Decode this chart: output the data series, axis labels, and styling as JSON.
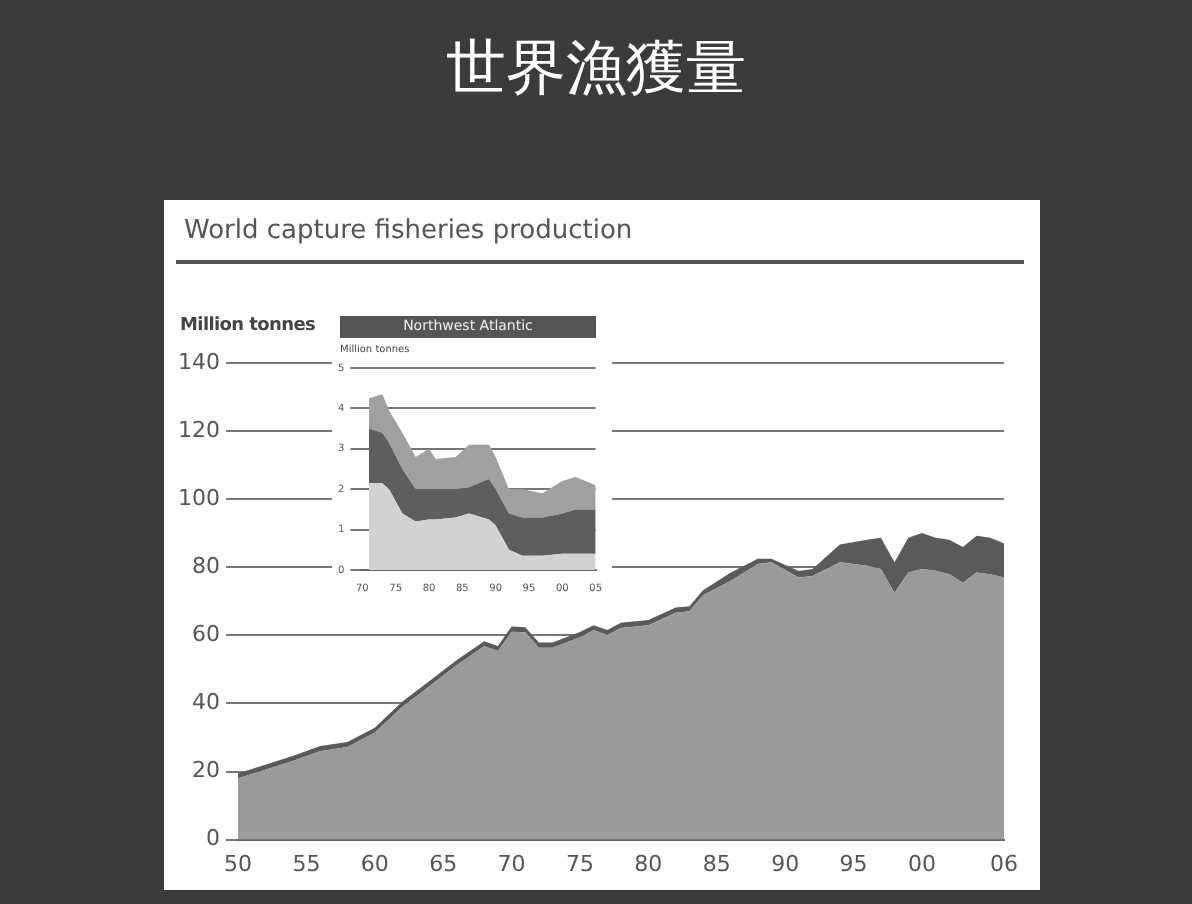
{
  "chart_data": [
    {
      "type": "area",
      "title": "世界漁獲量",
      "subtitle": "World capture fisheries production",
      "ylabel": "Million tonnes",
      "stacked": true,
      "grid": "y",
      "x": [
        1950,
        1952,
        1954,
        1956,
        1958,
        1960,
        1962,
        1964,
        1966,
        1968,
        1969,
        1970,
        1971,
        1972,
        1973,
        1975,
        1976,
        1977,
        1978,
        1980,
        1982,
        1983,
        1984,
        1986,
        1988,
        1989,
        1991,
        1992,
        1994,
        1996,
        1997,
        1998,
        1999,
        2000,
        2001,
        2002,
        2003,
        2004,
        2005,
        2006
      ],
      "xlim": [
        1950,
        2006
      ],
      "xticks": [
        {
          "value": 1950,
          "label": "50"
        },
        {
          "value": 1955,
          "label": "55"
        },
        {
          "value": 1960,
          "label": "60"
        },
        {
          "value": 1965,
          "label": "65"
        },
        {
          "value": 1970,
          "label": "70"
        },
        {
          "value": 1975,
          "label": "75"
        },
        {
          "value": 1980,
          "label": "80"
        },
        {
          "value": 1985,
          "label": "85"
        },
        {
          "value": 1990,
          "label": "90"
        },
        {
          "value": 1995,
          "label": "95"
        },
        {
          "value": 2000,
          "label": "00"
        },
        {
          "value": 2006,
          "label": "06"
        }
      ],
      "ylim": [
        0,
        140
      ],
      "yticks": [
        0,
        20,
        40,
        60,
        80,
        100,
        120,
        140
      ],
      "series": [
        {
          "color": "#9a9a9a",
          "values": [
            18,
            20.5,
            23.1,
            26,
            27.2,
            31.4,
            39,
            45.1,
            51.3,
            56.8,
            55.4,
            61.1,
            60.9,
            56.4,
            56.4,
            59.5,
            61.5,
            60.1,
            62.2,
            63,
            66.7,
            67.1,
            71.8,
            76,
            81,
            81.5,
            77,
            77.5,
            81.5,
            80.5,
            79.5,
            72.5,
            78.5,
            79.5,
            79,
            78,
            75.5,
            78.5,
            78,
            77
          ]
        },
        {
          "color": "#5a5a5a",
          "values": [
            1.5,
            1.5,
            1.5,
            1.5,
            1.5,
            1.5,
            1.5,
            1.5,
            1.5,
            1.5,
            1.5,
            1.5,
            1.5,
            1.5,
            1.5,
            1.5,
            1.5,
            1.5,
            1.5,
            1.5,
            1.5,
            1.5,
            1.5,
            2.4,
            1.5,
            1,
            1.9,
            2,
            5.2,
            7.6,
            9.2,
            9,
            10.2,
            10.6,
            9.7,
            10.1,
            10.5,
            10.8,
            10.7,
            10
          ]
        }
      ]
    },
    {
      "type": "area",
      "title": "Northwest Atlantic",
      "ylabel": "Million tonnes",
      "stacked": true,
      "grid": "y",
      "x": [
        1971,
        1973,
        1974,
        1976,
        1978,
        1980,
        1981,
        1984,
        1986,
        1989,
        1990,
        1992,
        1994,
        1997,
        2000,
        2002,
        2005
      ],
      "xlim": [
        1970,
        2005
      ],
      "xticks": [
        {
          "value": 1970,
          "label": "70"
        },
        {
          "value": 1975,
          "label": "75"
        },
        {
          "value": 1980,
          "label": "80"
        },
        {
          "value": 1985,
          "label": "85"
        },
        {
          "value": 1990,
          "label": "90"
        },
        {
          "value": 1995,
          "label": "95"
        },
        {
          "value": 2000,
          "label": "00"
        },
        {
          "value": 2005,
          "label": "05"
        }
      ],
      "ylim": [
        0,
        5
      ],
      "yticks": [
        0,
        1,
        2,
        3,
        4,
        5
      ],
      "series": [
        {
          "color": "#d2d2d2",
          "values": [
            2.15,
            2.15,
            2.0,
            1.4,
            1.2,
            1.25,
            1.25,
            1.3,
            1.4,
            1.25,
            1.1,
            0.5,
            0.35,
            0.35,
            0.4,
            0.4,
            0.4
          ]
        },
        {
          "color": "#5e5e5e",
          "values": [
            1.35,
            1.25,
            1.15,
            1.1,
            0.8,
            0.75,
            0.75,
            0.7,
            0.65,
            1.0,
            0.9,
            0.9,
            0.95,
            0.95,
            1.0,
            1.1,
            1.1
          ]
        },
        {
          "color": "#a0a0a0",
          "values": [
            0.75,
            0.95,
            0.8,
            0.9,
            0.8,
            1.0,
            0.75,
            0.8,
            1.05,
            0.85,
            0.8,
            0.6,
            0.7,
            0.6,
            0.8,
            0.8,
            0.6
          ]
        }
      ]
    }
  ]
}
